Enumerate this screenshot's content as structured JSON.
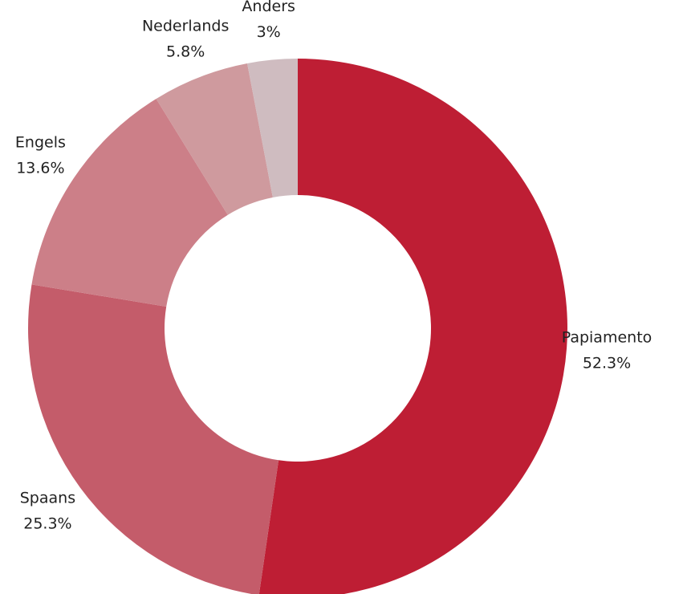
{
  "chart_data": {
    "type": "pie",
    "categories": [
      "Papiamento",
      "Spaans",
      "Engels",
      "Nederlands",
      "Anders"
    ],
    "values": [
      52.3,
      25.3,
      13.6,
      5.8,
      3
    ],
    "value_labels": [
      "52.3%",
      "25.3%",
      "13.6%",
      "5.8%",
      "3%"
    ],
    "colors": [
      "#be1e34",
      "#c45c6a",
      "#cc7f88",
      "#cf9a9e",
      "#cfbcc0"
    ],
    "donut": true
  }
}
